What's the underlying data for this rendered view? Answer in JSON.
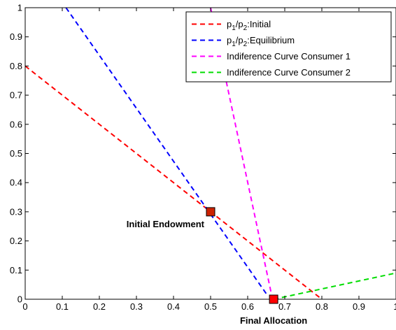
{
  "chart_data": {
    "type": "line",
    "title": "",
    "xlabel": "",
    "ylabel": "",
    "xlim": [
      0,
      1
    ],
    "ylim": [
      0,
      1
    ],
    "x_ticks": [
      0,
      0.1,
      0.2,
      0.3,
      0.4,
      0.5,
      0.6,
      0.7,
      0.8,
      0.9,
      1
    ],
    "x_tick_labels": [
      "0",
      "0.1",
      "0.2",
      "0.3",
      "0.4",
      "0.5",
      "0.6",
      "0.7",
      "0.8",
      "0.9",
      "1"
    ],
    "y_ticks": [
      0,
      0.1,
      0.2,
      0.3,
      0.4,
      0.5,
      0.6,
      0.7,
      0.8,
      0.9,
      1
    ],
    "y_tick_labels": [
      "0",
      "0.1",
      "0.2",
      "0.3",
      "0.4",
      "0.5",
      "0.6",
      "0.7",
      "0.8",
      "0.9",
      "1"
    ],
    "grid": false,
    "legend_position": "top-right",
    "series": [
      {
        "name": "p1/p2:Initial",
        "legend": {
          "prefix": "p",
          "sub1": "1",
          "mid": "/p",
          "sub2": "2",
          "suffix": ":Initial"
        },
        "color": "#ff0000",
        "style": "dashed",
        "x": [
          0,
          0.8
        ],
        "y": [
          0.8,
          0
        ]
      },
      {
        "name": "p1/p2:Equilibrium",
        "legend": {
          "prefix": "p",
          "sub1": "1",
          "mid": "/p",
          "sub2": "2",
          "suffix": ":Equilibrium"
        },
        "color": "#0000ff",
        "style": "dashed",
        "x": [
          0.11,
          0.655
        ],
        "y": [
          1,
          0.01
        ]
      },
      {
        "name": "Indiference Curve Consumer 1",
        "color": "#ff00ff",
        "style": "dashed",
        "x": [
          0.5,
          0.667
        ],
        "y": [
          1.0,
          0
        ]
      },
      {
        "name": "Indiference Curve Consumer 2",
        "color": "#00dd00",
        "style": "dashed",
        "x": [
          0.67,
          1.0
        ],
        "y": [
          0,
          0.09
        ]
      }
    ],
    "points": [
      {
        "label": "Initial Endowment",
        "x": 0.5,
        "y": 0.3,
        "color": "#cc2200"
      },
      {
        "label": "Final Allocation",
        "x": 0.67,
        "y": 0.0,
        "color": "#ff0000"
      }
    ]
  }
}
